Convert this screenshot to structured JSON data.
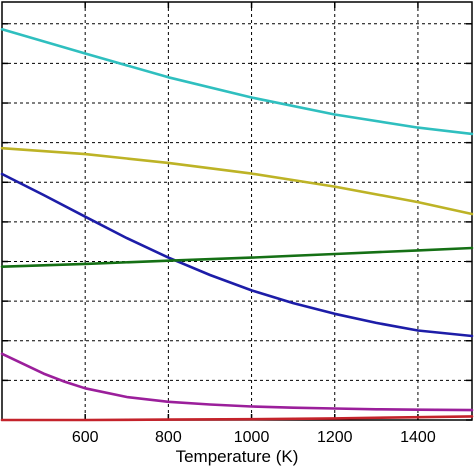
{
  "chart_data": {
    "type": "line",
    "xlabel": "Temperature (K)",
    "ylabel": "",
    "title": "",
    "xlim": [
      400,
      1530
    ],
    "ylim": [
      0,
      1.055
    ],
    "x_ticks": [
      600,
      800,
      1000,
      1200,
      1400
    ],
    "y_grid": [
      0,
      0.1,
      0.2,
      0.3,
      0.4,
      0.5,
      0.6,
      0.7,
      0.8,
      0.9,
      1.0
    ],
    "grid": true,
    "legend": "none",
    "series": [
      {
        "color": "#2fbfbf",
        "x": [
          400,
          600,
          800,
          1000,
          1200,
          1400,
          1530
        ],
        "y": [
          0.986,
          0.925,
          0.865,
          0.814,
          0.771,
          0.738,
          0.722
        ]
      },
      {
        "color": "#bdb326",
        "x": [
          400,
          600,
          800,
          1000,
          1200,
          1400,
          1530
        ],
        "y": [
          0.686,
          0.671,
          0.649,
          0.622,
          0.589,
          0.55,
          0.52
        ]
      },
      {
        "color": "#1d1da8",
        "x": [
          400,
          500,
          600,
          700,
          800,
          900,
          1000,
          1100,
          1200,
          1300,
          1400,
          1530
        ],
        "y": [
          0.621,
          0.568,
          0.513,
          0.459,
          0.41,
          0.366,
          0.327,
          0.295,
          0.268,
          0.245,
          0.226,
          0.212
        ]
      },
      {
        "color": "#157015",
        "x": [
          400,
          600,
          800,
          1000,
          1200,
          1400,
          1530
        ],
        "y": [
          0.387,
          0.394,
          0.402,
          0.41,
          0.419,
          0.428,
          0.434
        ]
      },
      {
        "color": "#9b1f9b",
        "x": [
          400,
          450,
          500,
          550,
          600,
          700,
          800,
          900,
          1000,
          1100,
          1200,
          1300,
          1400,
          1530
        ],
        "y": [
          0.167,
          0.142,
          0.117,
          0.097,
          0.08,
          0.058,
          0.046,
          0.039,
          0.034,
          0.031,
          0.029,
          0.027,
          0.026,
          0.025
        ]
      },
      {
        "color": "#c4232b",
        "x": [
          400,
          600,
          800,
          1000,
          1200,
          1400,
          1530
        ],
        "y": [
          0.0,
          0.0,
          0.001,
          0.002,
          0.004,
          0.007,
          0.009
        ]
      }
    ]
  }
}
